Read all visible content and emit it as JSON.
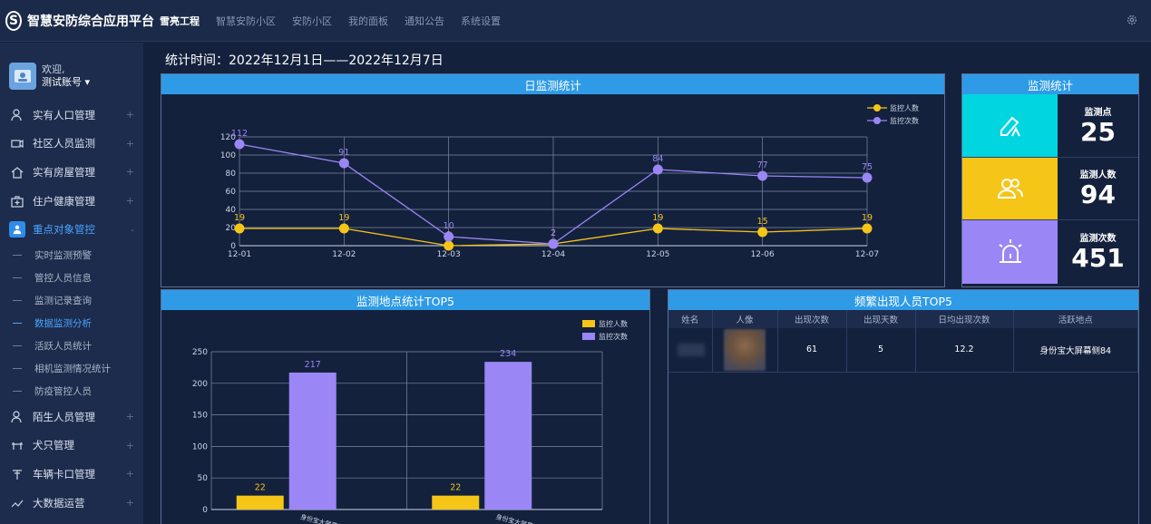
{
  "app": {
    "title": "智慧安防综合应用平台",
    "logo_letter": "S"
  },
  "topnav": [
    "雪亮工程",
    "智慧安防小区",
    "安防小区",
    "我的面板",
    "通知公告",
    "系统设置"
  ],
  "user": {
    "greeting": "欢迎,",
    "name": "测试账号 ▾"
  },
  "menu": [
    {
      "label": "实有人口管理",
      "icon": "person-icon"
    },
    {
      "label": "社区人员监测",
      "icon": "camera-icon"
    },
    {
      "label": "实有房屋管理",
      "icon": "home-icon"
    },
    {
      "label": "住户健康管理",
      "icon": "medkit-icon"
    },
    {
      "label": "重点对象管控",
      "icon": "user-badge-icon",
      "expand": "-"
    }
  ],
  "submenu": [
    "实时监测预警",
    "管控人员信息",
    "监测记录查询",
    "数据监测分析",
    "活跃人员统计",
    "相机监测情况统计",
    "防疫管控人员"
  ],
  "menu2": [
    {
      "label": "陌生人员管理",
      "icon": "stranger-icon"
    },
    {
      "label": "犬只管理",
      "icon": "dog-icon"
    },
    {
      "label": "车辆卡口管理",
      "icon": "barrier-icon"
    },
    {
      "label": "大数据运营",
      "icon": "trend-icon"
    }
  ],
  "plus_sign": "+",
  "stat_time": "统计时间：2022年12月1日——2022年12月7日",
  "panels": {
    "daily": "日监测统计",
    "monitor": "监测统计",
    "location_top5": "监测地点统计TOP5",
    "people_top5": "频繁出现人员TOP5"
  },
  "colors": {
    "yellow": "#f5c518",
    "purple": "#9b86f5",
    "cyan": "#00d5e0",
    "header": "#2f9be6"
  },
  "chart_data": [
    {
      "type": "line",
      "x": [
        "12-01",
        "12-02",
        "12-03",
        "12-04",
        "12-05",
        "12-06",
        "12-07"
      ],
      "series": [
        {
          "name": "监控人数",
          "values": [
            19,
            19,
            0,
            2,
            19,
            15,
            19
          ],
          "color": "#f5c518"
        },
        {
          "name": "监控次数",
          "values": [
            112,
            91,
            10,
            2,
            84,
            77,
            75
          ],
          "color": "#9b86f5"
        }
      ],
      "yticks": [
        0,
        20,
        40,
        60,
        80,
        100,
        120
      ],
      "ylim": [
        0,
        120
      ]
    },
    {
      "type": "bar",
      "categories": [
        "身份宝大屏幕侧...",
        "身份宝大屏幕侧..."
      ],
      "series": [
        {
          "name": "监控人数",
          "values": [
            22,
            22
          ],
          "color": "#f5c518"
        },
        {
          "name": "监控次数",
          "values": [
            217,
            234
          ],
          "color": "#9b86f5"
        }
      ],
      "yticks": [
        0,
        50,
        100,
        150,
        200,
        250
      ],
      "ylim": [
        0,
        250
      ]
    }
  ],
  "monitor_stats": [
    {
      "label": "监测点",
      "value": "25",
      "icon": "tag-icon",
      "color": "#00d5e0"
    },
    {
      "label": "监测人数",
      "value": "94",
      "icon": "people-icon",
      "color": "#f5c518"
    },
    {
      "label": "监测次数",
      "value": "451",
      "icon": "alarm-icon",
      "color": "#9b86f5"
    }
  ],
  "people_table": {
    "headers": [
      "姓名",
      "人像",
      "出现次数",
      "出现天数",
      "日均出现次数",
      "活跃地点"
    ],
    "rows": [
      {
        "count": "61",
        "days": "5",
        "avg": "12.2",
        "place": "身份宝大屏幕侧84"
      }
    ]
  }
}
